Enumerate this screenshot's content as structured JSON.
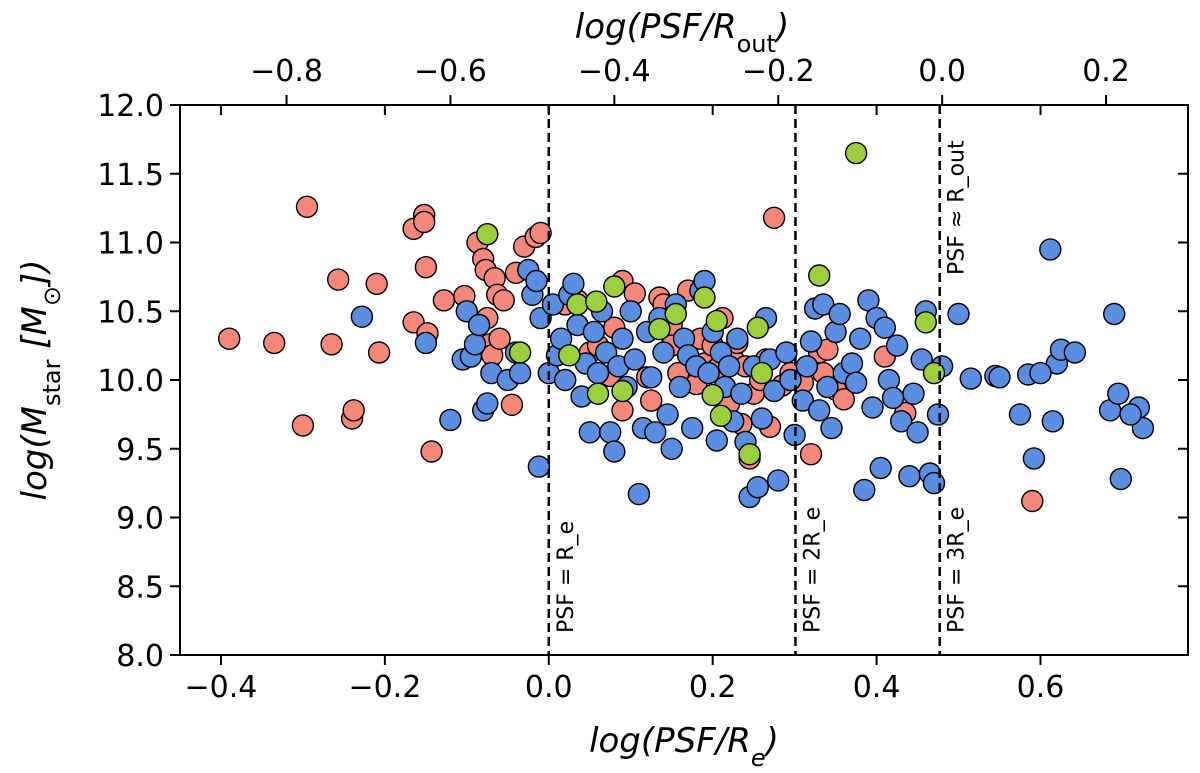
{
  "chart_data": {
    "type": "scatter",
    "xlabel": "log(PSF/R_e)",
    "ylabel": "log(M_star [M_⊙])",
    "top_xlabel": "log(PSF/R_out)",
    "xlim": [
      -0.45,
      0.78
    ],
    "ylim": [
      8.0,
      12.0
    ],
    "top_xlim": [
      -0.93,
      0.3
    ],
    "x_ticks": [
      -0.4,
      -0.2,
      0.0,
      0.2,
      0.4,
      0.6
    ],
    "x_tick_labels": [
      "−0.4",
      "−0.2",
      "0.0",
      "0.2",
      "0.4",
      "0.6"
    ],
    "y_ticks": [
      8.0,
      8.5,
      9.0,
      9.5,
      10.0,
      10.5,
      11.0,
      11.5,
      12.0
    ],
    "y_tick_labels": [
      "8.0",
      "8.5",
      "9.0",
      "9.5",
      "10.0",
      "10.5",
      "11.0",
      "11.5",
      "12.0"
    ],
    "top_ticks": [
      -0.8,
      -0.6,
      -0.4,
      -0.2,
      0.0,
      0.2
    ],
    "top_tick_labels": [
      "−0.8",
      "−0.6",
      "−0.4",
      "−0.2",
      "0.0",
      "0.2"
    ],
    "vlines": [
      {
        "x": 0.0,
        "label": "PSF = R_e"
      },
      {
        "x": 0.301,
        "label": "PSF = 2R_e"
      },
      {
        "x": 0.477,
        "label": "PSF = 3R_e"
      }
    ],
    "top_annotation": {
      "label": "PSF ≈ R_out",
      "x": 0.477
    },
    "series": [
      {
        "name": "red",
        "color": "#f4877a",
        "points": [
          [
            -0.39,
            10.3
          ],
          [
            -0.335,
            10.27
          ],
          [
            -0.295,
            11.26
          ],
          [
            -0.3,
            9.67
          ],
          [
            -0.265,
            10.26
          ],
          [
            -0.257,
            10.73
          ],
          [
            -0.24,
            9.72
          ],
          [
            -0.238,
            9.78
          ],
          [
            -0.21,
            10.7
          ],
          [
            -0.207,
            10.2
          ],
          [
            -0.165,
            11.1
          ],
          [
            -0.165,
            10.42
          ],
          [
            -0.152,
            11.2
          ],
          [
            -0.152,
            11.15
          ],
          [
            -0.15,
            10.82
          ],
          [
            -0.148,
            10.34
          ],
          [
            -0.143,
            9.48
          ],
          [
            -0.128,
            10.58
          ],
          [
            -0.103,
            10.61
          ],
          [
            -0.087,
            11.0
          ],
          [
            -0.08,
            10.88
          ],
          [
            -0.077,
            10.8
          ],
          [
            -0.075,
            10.45
          ],
          [
            -0.072,
            10.26
          ],
          [
            -0.069,
            10.18
          ],
          [
            -0.066,
            10.74
          ],
          [
            -0.063,
            10.62
          ],
          [
            -0.06,
            10.3
          ],
          [
            -0.055,
            10.58
          ],
          [
            -0.045,
            9.82
          ],
          [
            -0.04,
            10.78
          ],
          [
            -0.03,
            10.97
          ],
          [
            -0.016,
            11.04
          ],
          [
            -0.01,
            11.07
          ],
          [
            0.02,
            10.55
          ],
          [
            0.035,
            10.58
          ],
          [
            0.05,
            10.2
          ],
          [
            0.06,
            10.25
          ],
          [
            0.075,
            10.03
          ],
          [
            0.08,
            10.38
          ],
          [
            0.09,
            10.72
          ],
          [
            0.09,
            9.78
          ],
          [
            0.105,
            10.63
          ],
          [
            0.12,
            10.02
          ],
          [
            0.125,
            9.85
          ],
          [
            0.135,
            10.6
          ],
          [
            0.14,
            10.55
          ],
          [
            0.15,
            10.4
          ],
          [
            0.15,
            10.25
          ],
          [
            0.158,
            10.05
          ],
          [
            0.17,
            10.65
          ],
          [
            0.18,
            9.97
          ],
          [
            0.185,
            10.3
          ],
          [
            0.19,
            10.12
          ],
          [
            0.2,
            10.25
          ],
          [
            0.205,
            10.08
          ],
          [
            0.212,
            10.45
          ],
          [
            0.22,
            9.83
          ],
          [
            0.225,
            10.15
          ],
          [
            0.23,
            10.27
          ],
          [
            0.235,
            9.68
          ],
          [
            0.24,
            10.1
          ],
          [
            0.245,
            9.43
          ],
          [
            0.25,
            9.9
          ],
          [
            0.258,
            10.0
          ],
          [
            0.265,
            10.15
          ],
          [
            0.27,
            9.66
          ],
          [
            0.275,
            11.18
          ],
          [
            0.285,
            9.96
          ],
          [
            0.295,
            10.05
          ],
          [
            0.31,
            9.98
          ],
          [
            0.32,
            9.46
          ],
          [
            0.33,
            10.2
          ],
          [
            0.335,
            10.05
          ],
          [
            0.34,
            10.22
          ],
          [
            0.35,
            9.93
          ],
          [
            0.36,
            9.86
          ],
          [
            0.41,
            10.17
          ],
          [
            0.435,
            9.76
          ],
          [
            0.59,
            9.12
          ]
        ]
      },
      {
        "name": "blue",
        "color": "#5b8de0",
        "points": [
          [
            -0.228,
            10.46
          ],
          [
            -0.15,
            10.27
          ],
          [
            -0.12,
            9.71
          ],
          [
            -0.105,
            10.15
          ],
          [
            -0.1,
            10.5
          ],
          [
            -0.095,
            10.17
          ],
          [
            -0.09,
            10.26
          ],
          [
            -0.085,
            10.4
          ],
          [
            -0.08,
            9.78
          ],
          [
            -0.075,
            9.83
          ],
          [
            -0.07,
            10.05
          ],
          [
            -0.05,
            10.0
          ],
          [
            -0.04,
            10.2
          ],
          [
            -0.035,
            10.05
          ],
          [
            -0.025,
            10.8
          ],
          [
            -0.02,
            10.62
          ],
          [
            -0.015,
            10.72
          ],
          [
            -0.012,
            9.37
          ],
          [
            -0.01,
            10.45
          ],
          [
            0.0,
            10.05
          ],
          [
            0.005,
            10.55
          ],
          [
            0.01,
            10.18
          ],
          [
            0.015,
            10.3
          ],
          [
            0.02,
            10.0
          ],
          [
            0.025,
            10.62
          ],
          [
            0.03,
            10.7
          ],
          [
            0.035,
            10.4
          ],
          [
            0.04,
            9.88
          ],
          [
            0.045,
            10.12
          ],
          [
            0.05,
            9.62
          ],
          [
            0.055,
            10.35
          ],
          [
            0.06,
            10.05
          ],
          [
            0.065,
            10.5
          ],
          [
            0.07,
            10.2
          ],
          [
            0.075,
            9.62
          ],
          [
            0.08,
            9.48
          ],
          [
            0.085,
            10.1
          ],
          [
            0.09,
            10.3
          ],
          [
            0.095,
            9.95
          ],
          [
            0.1,
            10.5
          ],
          [
            0.105,
            10.15
          ],
          [
            0.11,
            9.17
          ],
          [
            0.115,
            9.65
          ],
          [
            0.12,
            10.35
          ],
          [
            0.125,
            10.02
          ],
          [
            0.13,
            9.62
          ],
          [
            0.135,
            10.45
          ],
          [
            0.14,
            10.2
          ],
          [
            0.145,
            9.75
          ],
          [
            0.15,
            9.5
          ],
          [
            0.155,
            10.55
          ],
          [
            0.16,
            9.95
          ],
          [
            0.165,
            10.3
          ],
          [
            0.17,
            10.18
          ],
          [
            0.175,
            9.65
          ],
          [
            0.18,
            10.1
          ],
          [
            0.185,
            10.65
          ],
          [
            0.19,
            10.72
          ],
          [
            0.195,
            10.05
          ],
          [
            0.2,
            10.35
          ],
          [
            0.205,
            9.56
          ],
          [
            0.21,
            10.2
          ],
          [
            0.215,
            9.95
          ],
          [
            0.22,
            10.1
          ],
          [
            0.225,
            9.7
          ],
          [
            0.23,
            10.3
          ],
          [
            0.235,
            9.9
          ],
          [
            0.24,
            9.55
          ],
          [
            0.245,
            9.15
          ],
          [
            0.25,
            10.1
          ],
          [
            0.255,
            9.22
          ],
          [
            0.26,
            9.72
          ],
          [
            0.265,
            10.45
          ],
          [
            0.27,
            10.15
          ],
          [
            0.275,
            9.92
          ],
          [
            0.28,
            9.27
          ],
          [
            0.29,
            10.2
          ],
          [
            0.295,
            10.0
          ],
          [
            0.3,
            9.6
          ],
          [
            0.31,
            9.85
          ],
          [
            0.315,
            10.1
          ],
          [
            0.32,
            10.28
          ],
          [
            0.325,
            10.52
          ],
          [
            0.33,
            9.78
          ],
          [
            0.335,
            10.55
          ],
          [
            0.34,
            9.95
          ],
          [
            0.345,
            9.65
          ],
          [
            0.35,
            10.35
          ],
          [
            0.355,
            10.48
          ],
          [
            0.36,
            10.05
          ],
          [
            0.37,
            10.12
          ],
          [
            0.375,
            9.98
          ],
          [
            0.38,
            10.3
          ],
          [
            0.385,
            9.2
          ],
          [
            0.39,
            10.58
          ],
          [
            0.395,
            9.8
          ],
          [
            0.4,
            10.45
          ],
          [
            0.405,
            9.36
          ],
          [
            0.41,
            10.38
          ],
          [
            0.415,
            10.0
          ],
          [
            0.42,
            9.87
          ],
          [
            0.425,
            10.25
          ],
          [
            0.43,
            9.7
          ],
          [
            0.44,
            9.3
          ],
          [
            0.445,
            9.9
          ],
          [
            0.45,
            9.62
          ],
          [
            0.455,
            10.15
          ],
          [
            0.46,
            10.5
          ],
          [
            0.465,
            9.32
          ],
          [
            0.47,
            9.25
          ],
          [
            0.475,
            9.75
          ],
          [
            0.48,
            10.1
          ],
          [
            0.5,
            10.48
          ],
          [
            0.515,
            10.01
          ],
          [
            0.545,
            10.03
          ],
          [
            0.55,
            10.02
          ],
          [
            0.575,
            9.75
          ],
          [
            0.585,
            10.04
          ],
          [
            0.592,
            9.43
          ],
          [
            0.612,
            10.95
          ],
          [
            0.615,
            9.7
          ],
          [
            0.62,
            10.12
          ],
          [
            0.625,
            10.22
          ],
          [
            0.642,
            10.2
          ],
          [
            0.685,
            9.78
          ],
          [
            0.69,
            10.48
          ],
          [
            0.695,
            9.9
          ],
          [
            0.698,
            9.28
          ],
          [
            0.72,
            9.8
          ],
          [
            0.725,
            9.65
          ],
          [
            0.71,
            9.75
          ],
          [
            0.6,
            10.05
          ]
        ]
      },
      {
        "name": "green",
        "color": "#9bcf3e",
        "points": [
          [
            -0.075,
            11.06
          ],
          [
            -0.035,
            10.2
          ],
          [
            0.025,
            10.18
          ],
          [
            0.035,
            10.55
          ],
          [
            0.058,
            10.57
          ],
          [
            0.06,
            9.9
          ],
          [
            0.08,
            10.68
          ],
          [
            0.09,
            9.92
          ],
          [
            0.135,
            10.37
          ],
          [
            0.155,
            10.48
          ],
          [
            0.19,
            10.6
          ],
          [
            0.2,
            9.89
          ],
          [
            0.205,
            10.43
          ],
          [
            0.21,
            9.74
          ],
          [
            0.245,
            9.46
          ],
          [
            0.255,
            10.38
          ],
          [
            0.26,
            10.05
          ],
          [
            0.33,
            10.76
          ],
          [
            0.375,
            11.65
          ],
          [
            0.46,
            10.42
          ],
          [
            0.47,
            10.05
          ]
        ]
      }
    ]
  }
}
